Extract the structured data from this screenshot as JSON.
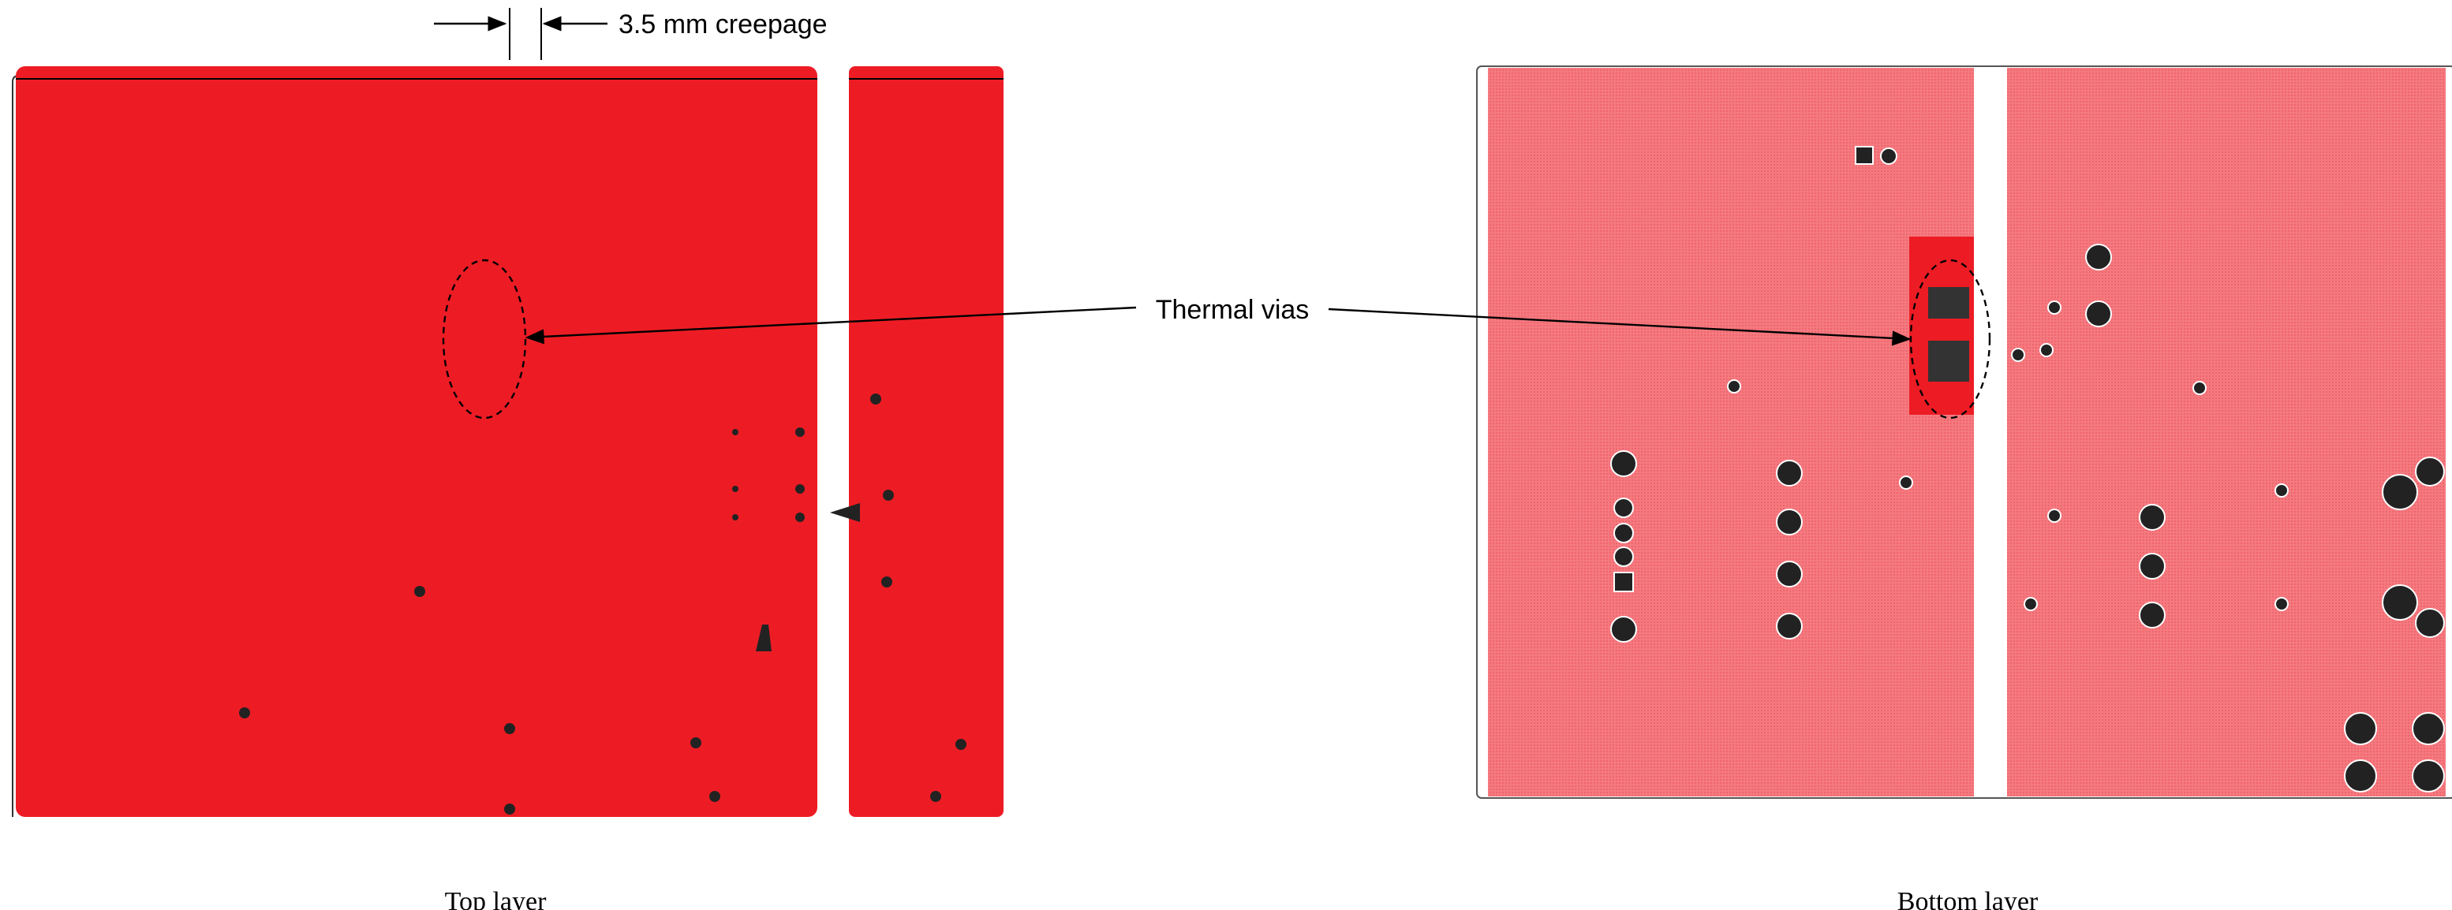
{
  "annotations": {
    "creepage": "3.5 mm creepage",
    "thermal_vias": "Thermal vias"
  },
  "captions": {
    "top": "Top layer",
    "bottom": "Bottom layer"
  }
}
